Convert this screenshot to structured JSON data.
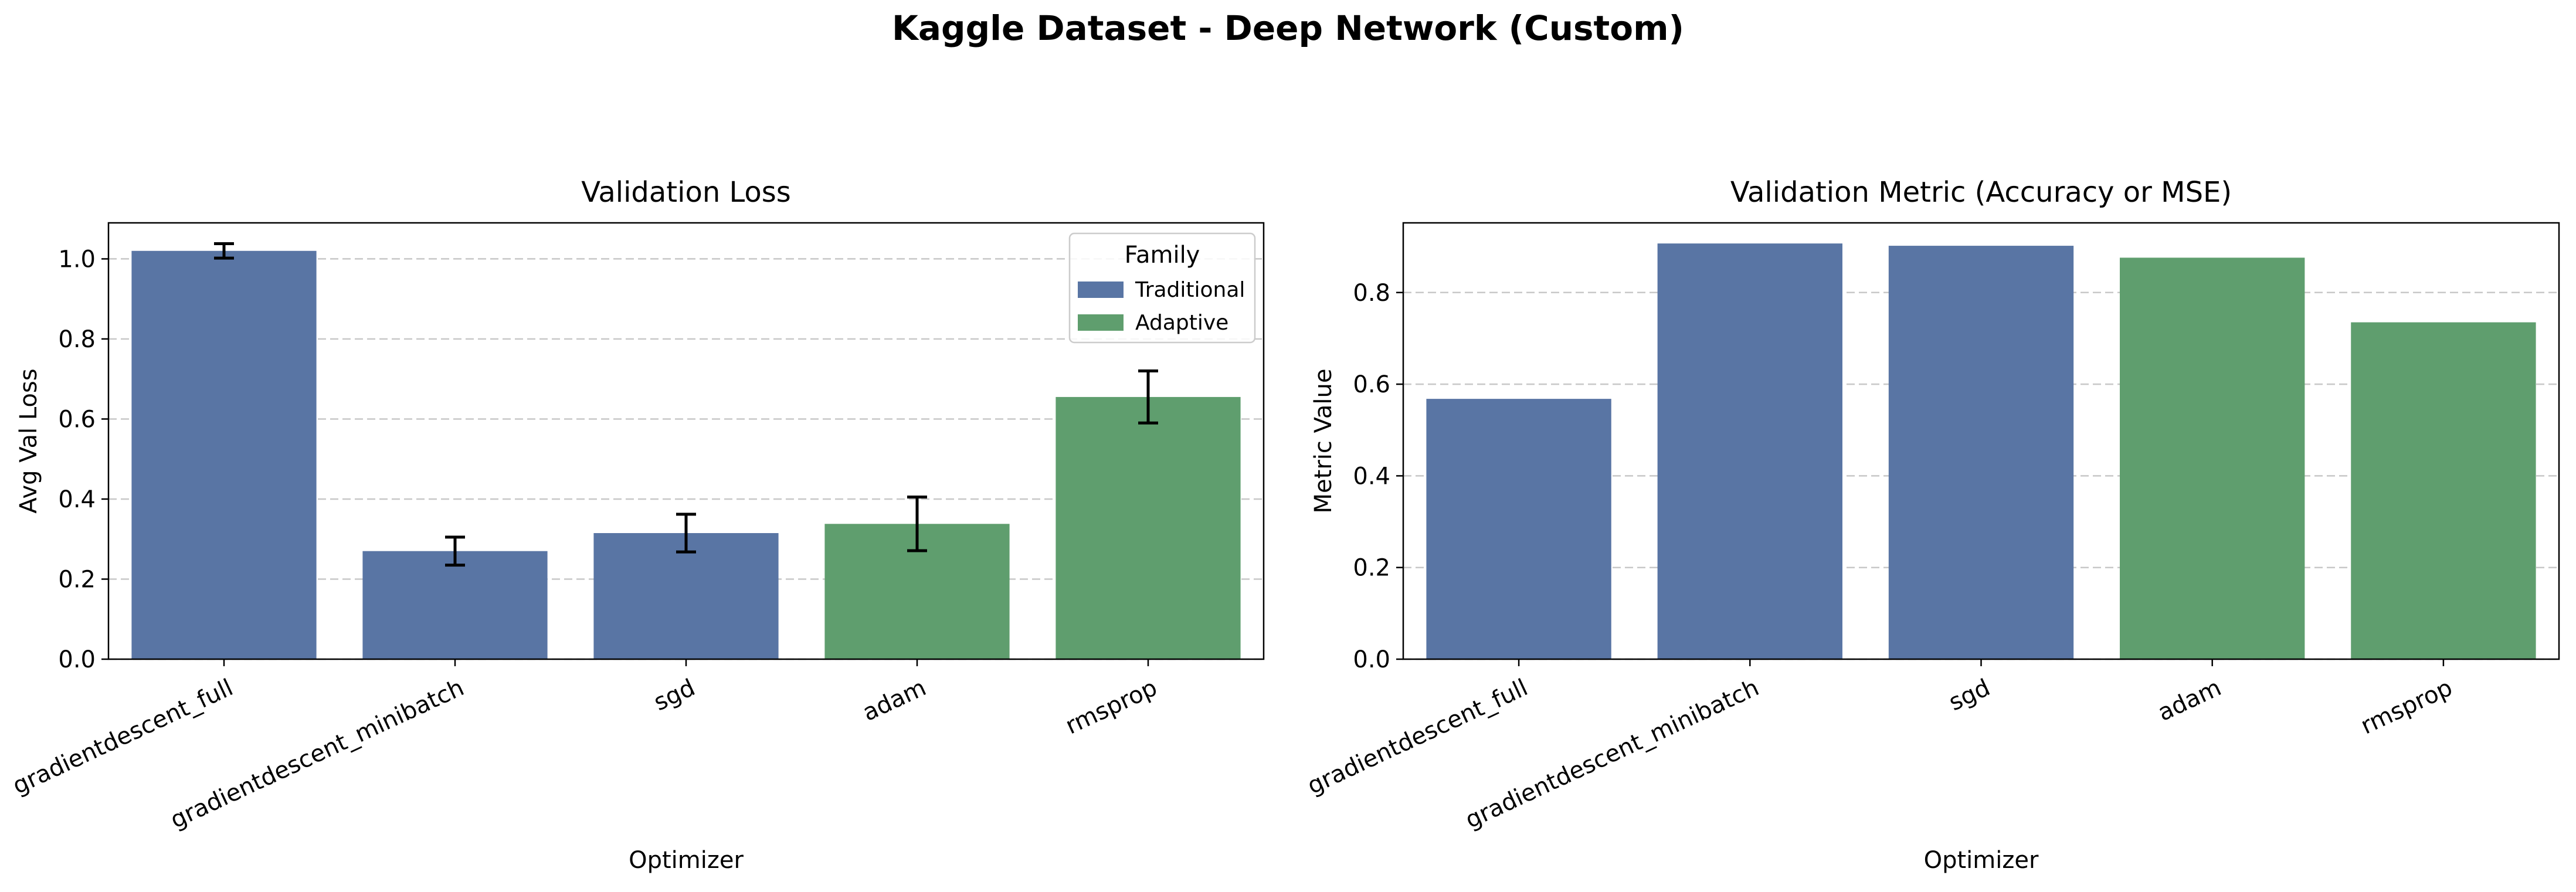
{
  "figure": {
    "title": "Kaggle Dataset - Deep Network (Custom)"
  },
  "colors": {
    "traditional": "#5975a4",
    "adaptive": "#5f9e6e",
    "grid": "#c8c8c8"
  },
  "chart_data": [
    {
      "type": "bar",
      "title": "Validation Loss",
      "xlabel": "Optimizer",
      "ylabel": "Avg Val Loss",
      "categories": [
        "gradientdescent_full",
        "gradientdescent_minibatch",
        "sgd",
        "adam",
        "rmsprop"
      ],
      "values": [
        1.02,
        0.27,
        0.315,
        0.338,
        0.655
      ],
      "errors": [
        0.018,
        0.035,
        0.047,
        0.067,
        0.065
      ],
      "family": [
        "Traditional",
        "Traditional",
        "Traditional",
        "Adaptive",
        "Adaptive"
      ],
      "ylim": [
        0,
        1.09
      ],
      "yticks": [
        0.0,
        0.2,
        0.4,
        0.6,
        0.8,
        1.0
      ],
      "grid": "y, dashed",
      "legend": {
        "title": "Family",
        "entries": [
          "Traditional",
          "Adaptive"
        ],
        "placement": "top-right"
      }
    },
    {
      "type": "bar",
      "title": "Validation Metric (Accuracy or MSE)",
      "xlabel": "Optimizer",
      "ylabel": "Metric Value",
      "categories": [
        "gradientdescent_full",
        "gradientdescent_minibatch",
        "sgd",
        "adam",
        "rmsprop"
      ],
      "values": [
        0.568,
        0.907,
        0.902,
        0.876,
        0.735
      ],
      "family": [
        "Traditional",
        "Traditional",
        "Traditional",
        "Adaptive",
        "Adaptive"
      ],
      "ylim": [
        0,
        0.952
      ],
      "yticks": [
        0.0,
        0.2,
        0.4,
        0.6,
        0.8
      ],
      "grid": "y, dashed"
    }
  ]
}
